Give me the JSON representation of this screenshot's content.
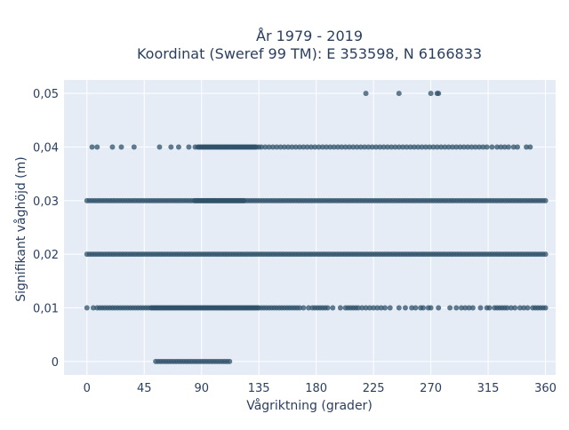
{
  "chart_data": {
    "type": "scatter",
    "title_line1": "År 1979 - 2019",
    "title_line2": "Koordinat (Sweref 99 TM): E 353598, N 6166833",
    "xlabel": "Vågriktning (grader)",
    "ylabel": "Signifikant våghöjd (m)",
    "xlim": [
      -18,
      368
    ],
    "ylim": [
      -0.0025,
      0.0525
    ],
    "x_ticks": [
      0,
      45,
      90,
      135,
      180,
      225,
      270,
      315,
      360
    ],
    "y_ticks": [
      0,
      0.01,
      0.02,
      0.03,
      0.04,
      0.05
    ],
    "y_tick_labels": [
      "0",
      "0,01",
      "0,02",
      "0,03",
      "0,04",
      "0,05"
    ],
    "grid": true,
    "marker_color": "#2f5168",
    "series": [
      {
        "y": 0.05,
        "x": [
          219,
          245,
          270,
          275,
          276
        ]
      },
      {
        "y": 0.04,
        "x": [
          4,
          8,
          20,
          27,
          37,
          57,
          66,
          72,
          80,
          85,
          87,
          88,
          89,
          90,
          91,
          92,
          93,
          94,
          95,
          96,
          97,
          98,
          99,
          100,
          101,
          102,
          103,
          104,
          105,
          106,
          107,
          108,
          109,
          110,
          111,
          112,
          113,
          114,
          115,
          116,
          117,
          118,
          119,
          120,
          121,
          122,
          123,
          124,
          125,
          126,
          127,
          128,
          129,
          130,
          131,
          132,
          133,
          135,
          137,
          140,
          143,
          146,
          149,
          152,
          155,
          158,
          161,
          164,
          167,
          170,
          173,
          176,
          179,
          182,
          185,
          188,
          191,
          194,
          197,
          200,
          203,
          206,
          209,
          212,
          215,
          218,
          221,
          224,
          227,
          230,
          233,
          236,
          239,
          242,
          245,
          248,
          251,
          254,
          257,
          260,
          263,
          266,
          269,
          272,
          275,
          278,
          281,
          284,
          287,
          290,
          293,
          296,
          299,
          302,
          305,
          308,
          311,
          314,
          318,
          322,
          325,
          328,
          331,
          335,
          338,
          345,
          348
        ]
      },
      {
        "y": 0.03,
        "x": [
          0,
          2,
          4,
          6,
          8,
          10,
          12,
          14,
          16,
          18,
          20,
          22,
          24,
          26,
          28,
          30,
          32,
          34,
          36,
          38,
          40,
          42,
          44,
          46,
          48,
          50,
          52,
          54,
          56,
          58,
          60,
          62,
          64,
          66,
          68,
          70,
          72,
          74,
          76,
          78,
          80,
          82,
          84,
          85,
          86,
          87,
          88,
          89,
          90,
          91,
          92,
          93,
          94,
          95,
          96,
          97,
          98,
          99,
          100,
          101,
          102,
          103,
          104,
          105,
          106,
          107,
          108,
          109,
          110,
          111,
          112,
          113,
          114,
          115,
          116,
          117,
          118,
          119,
          120,
          121,
          122,
          123,
          124,
          126,
          128,
          130,
          132,
          134,
          136,
          138,
          140,
          142,
          144,
          146,
          148,
          150,
          152,
          154,
          156,
          158,
          160,
          162,
          164,
          166,
          168,
          170,
          172,
          174,
          176,
          178,
          180,
          182,
          184,
          186,
          188,
          190,
          192,
          194,
          196,
          198,
          200,
          202,
          204,
          206,
          208,
          210,
          212,
          214,
          216,
          218,
          220,
          222,
          224,
          226,
          228,
          230,
          232,
          234,
          236,
          238,
          240,
          242,
          244,
          246,
          248,
          250,
          252,
          254,
          256,
          258,
          260,
          262,
          264,
          266,
          268,
          270,
          272,
          274,
          276,
          278,
          280,
          282,
          284,
          286,
          288,
          290,
          292,
          294,
          296,
          298,
          300,
          302,
          304,
          306,
          308,
          310,
          312,
          314,
          316,
          318,
          320,
          322,
          324,
          326,
          328,
          330,
          332,
          334,
          336,
          338,
          340,
          342,
          344,
          346,
          348,
          350,
          352,
          354,
          356,
          358,
          360
        ]
      },
      {
        "y": 0.02,
        "x": [
          0,
          2,
          4,
          6,
          8,
          10,
          12,
          14,
          16,
          18,
          20,
          22,
          24,
          26,
          28,
          30,
          32,
          34,
          36,
          38,
          40,
          42,
          44,
          46,
          48,
          50,
          52,
          54,
          56,
          58,
          60,
          62,
          64,
          66,
          68,
          70,
          72,
          74,
          76,
          78,
          80,
          82,
          84,
          86,
          88,
          90,
          92,
          94,
          96,
          98,
          100,
          102,
          104,
          106,
          108,
          110,
          112,
          114,
          116,
          118,
          120,
          122,
          124,
          126,
          128,
          130,
          132,
          134,
          136,
          138,
          140,
          142,
          144,
          146,
          148,
          150,
          152,
          154,
          156,
          158,
          160,
          162,
          164,
          166,
          168,
          170,
          172,
          174,
          176,
          178,
          180,
          182,
          184,
          186,
          188,
          190,
          192,
          194,
          196,
          198,
          200,
          202,
          204,
          206,
          208,
          210,
          212,
          214,
          216,
          218,
          220,
          222,
          224,
          226,
          228,
          230,
          232,
          234,
          236,
          238,
          240,
          242,
          244,
          246,
          248,
          250,
          252,
          254,
          256,
          258,
          260,
          262,
          264,
          266,
          268,
          270,
          272,
          274,
          276,
          278,
          280,
          282,
          284,
          286,
          288,
          290,
          292,
          294,
          296,
          298,
          300,
          302,
          304,
          306,
          308,
          310,
          312,
          314,
          316,
          318,
          320,
          322,
          324,
          326,
          328,
          330,
          332,
          334,
          336,
          338,
          340,
          342,
          344,
          346,
          348,
          350,
          352,
          354,
          356,
          358,
          360
        ]
      },
      {
        "y": 0.01,
        "x": [
          0,
          5,
          8,
          10,
          12,
          14,
          16,
          18,
          20,
          22,
          24,
          26,
          28,
          30,
          32,
          34,
          36,
          38,
          40,
          42,
          44,
          46,
          48,
          50,
          51,
          52,
          53,
          54,
          55,
          56,
          57,
          58,
          59,
          60,
          61,
          62,
          63,
          64,
          65,
          66,
          67,
          68,
          69,
          70,
          71,
          72,
          73,
          74,
          75,
          76,
          77,
          78,
          79,
          80,
          81,
          82,
          83,
          84,
          85,
          86,
          87,
          88,
          89,
          90,
          91,
          92,
          93,
          94,
          95,
          96,
          97,
          98,
          99,
          100,
          101,
          102,
          103,
          104,
          105,
          106,
          107,
          108,
          109,
          110,
          111,
          112,
          113,
          114,
          115,
          116,
          117,
          118,
          119,
          120,
          121,
          122,
          123,
          124,
          125,
          126,
          127,
          128,
          129,
          130,
          131,
          132,
          133,
          134,
          135,
          137,
          139,
          141,
          143,
          145,
          147,
          149,
          151,
          153,
          155,
          157,
          159,
          161,
          163,
          165,
          167,
          170,
          174,
          177,
          179,
          181,
          183,
          185,
          187,
          189,
          193,
          199,
          203,
          205,
          207,
          209,
          211,
          213,
          216,
          219,
          222,
          225,
          228,
          231,
          234,
          238,
          245,
          250,
          255,
          258,
          262,
          264,
          268,
          270,
          276,
          285,
          290,
          294,
          297,
          300,
          303,
          309,
          314,
          316,
          320,
          322,
          324,
          326,
          328,
          330,
          333,
          336,
          340,
          343,
          346,
          350,
          352,
          354,
          356,
          358,
          360
        ]
      },
      {
        "y": 0,
        "x": [
          54,
          56,
          58,
          60,
          62,
          64,
          66,
          68,
          70,
          72,
          74,
          76,
          78,
          80,
          82,
          84,
          86,
          88,
          90,
          92,
          94,
          96,
          98,
          100,
          102,
          104,
          106,
          108,
          110,
          112
        ]
      }
    ]
  }
}
